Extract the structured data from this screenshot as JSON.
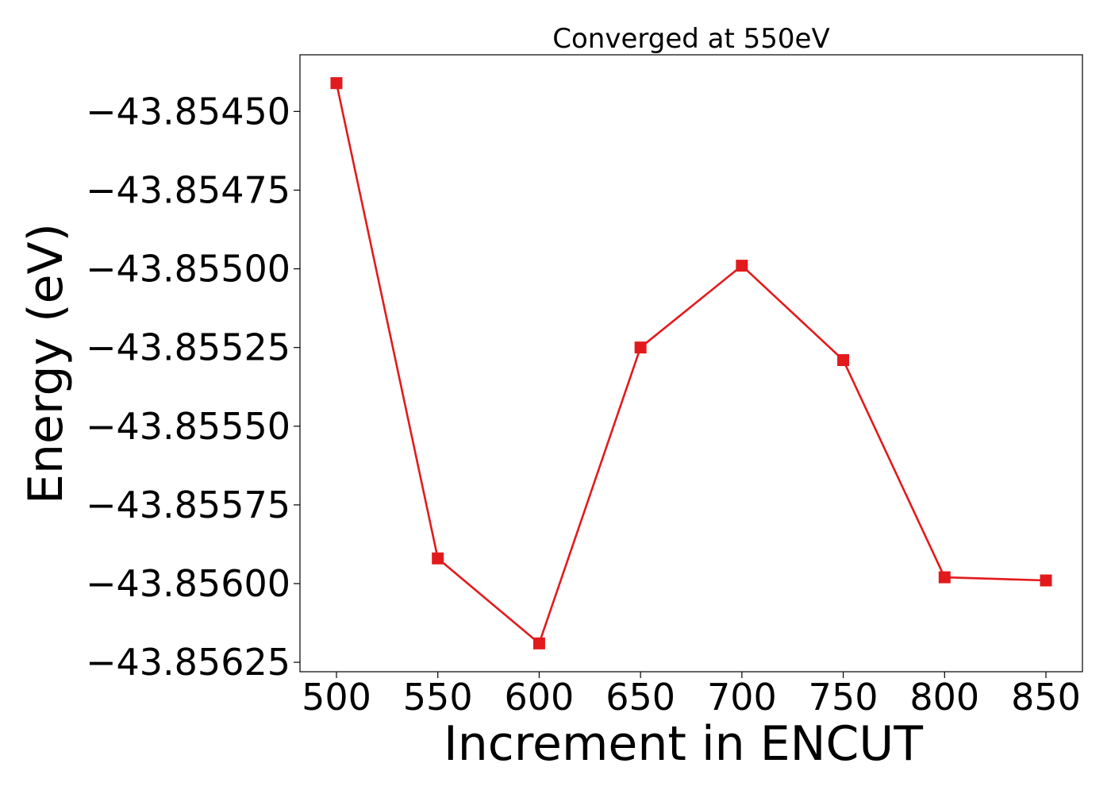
{
  "chart_data": {
    "type": "line",
    "title": "Converged at 550eV",
    "xlabel": "Increment in ENCUT",
    "ylabel": "Energy (eV)",
    "x": [
      500,
      550,
      600,
      650,
      700,
      750,
      800,
      850
    ],
    "series": [
      {
        "values": [
          -43.85441,
          -43.85592,
          -43.85619,
          -43.85525,
          -43.85499,
          -43.85529,
          -43.85598,
          -43.85599
        ],
        "color": "#e31a1c",
        "marker": "square"
      }
    ],
    "xticks": [
      500,
      550,
      600,
      650,
      700,
      750,
      800,
      850
    ],
    "xtick_labels": [
      "500",
      "550",
      "600",
      "650",
      "700",
      "750",
      "800",
      "850"
    ],
    "yticks": [
      -43.8545,
      -43.85475,
      -43.855,
      -43.85525,
      -43.8555,
      -43.85575,
      -43.856,
      -43.85625
    ],
    "ytick_labels": [
      "−43.85450",
      "−43.85475",
      "−43.85500",
      "−43.85525",
      "−43.85550",
      "−43.85575",
      "−43.85600",
      "−43.85625"
    ],
    "xlim": [
      482,
      868
    ],
    "ylim": [
      -43.85628,
      -43.85432
    ],
    "grid": false,
    "legend": "none"
  }
}
